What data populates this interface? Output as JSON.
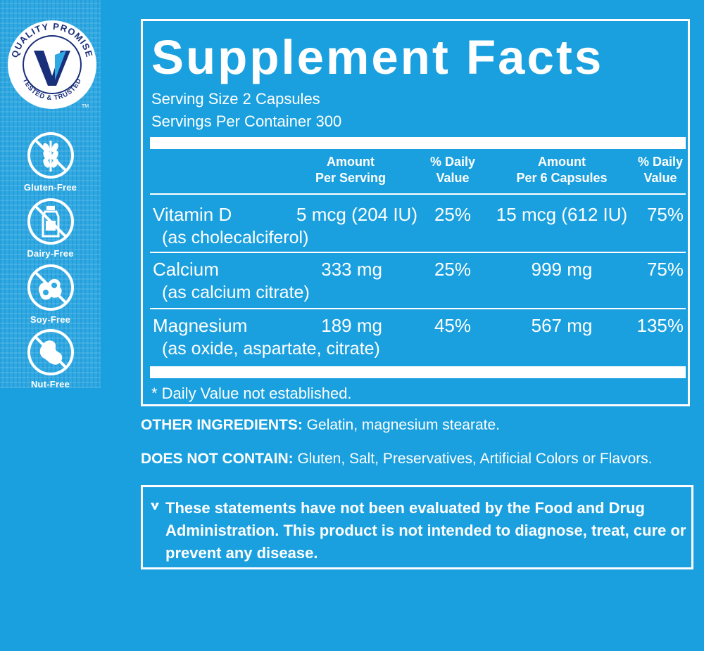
{
  "badges": {
    "quality_promise": {
      "top_text": "QUALITY PROMISE",
      "bottom_text": "TESTED & TRUSTED",
      "trademark": "TM"
    },
    "free_items": [
      {
        "label": "Gluten-Free",
        "icon": "wheat-crossed-icon"
      },
      {
        "label": "Dairy-Free",
        "icon": "bottle-crossed-icon"
      },
      {
        "label": "Soy-Free",
        "icon": "soybean-crossed-icon"
      },
      {
        "label": "Nut-Free",
        "icon": "peanut-crossed-icon"
      }
    ]
  },
  "facts": {
    "title": "Supplement Facts",
    "serving_size": "Serving Size 2 Capsules",
    "servings_per_container": "Servings Per Container 300",
    "columns": {
      "amount_per_serving_1": "Amount",
      "amount_per_serving_2": "Per Serving",
      "daily_value_1": "% Daily",
      "daily_value_2": "Value",
      "amount_per_6_1": "Amount",
      "amount_per_6_2": "Per 6 Capsules",
      "daily_value_6_1": "% Daily",
      "daily_value_6_2": "Value"
    },
    "rows": [
      {
        "name": "Vitamin D",
        "form": "(as cholecalciferol)",
        "amount": "5 mcg (204 IU)",
        "dv": "25%",
        "amount6": "15 mcg (612 IU)",
        "dv6": "75%"
      },
      {
        "name": "Calcium",
        "form": "(as calcium citrate)",
        "amount": "333 mg",
        "dv": "25%",
        "amount6": "999 mg",
        "dv6": "75%"
      },
      {
        "name": "Magnesium",
        "form": "(as oxide, aspartate, citrate)",
        "amount": "189 mg",
        "dv": "45%",
        "amount6": "567 mg",
        "dv6": "135%"
      }
    ],
    "footnote": "* Daily Value not established."
  },
  "ingredients": {
    "other_label": "OTHER INGREDIENTS:",
    "other_value": " Gelatin, magnesium stearate.",
    "not_contain_label": "DOES NOT CONTAIN:",
    "not_contain_value": " Gluten, Salt, Preservatives, Artificial Colors or Flavors."
  },
  "disclaimer": {
    "text": "These statements have not been evaluated by the Food and Drug Administration. This product is not intended to diagnose, treat, cure or prevent any disease."
  },
  "colors": {
    "background": "#1aa0df",
    "badge_navy": "#1a2f7a",
    "text": "#ffffff"
  }
}
